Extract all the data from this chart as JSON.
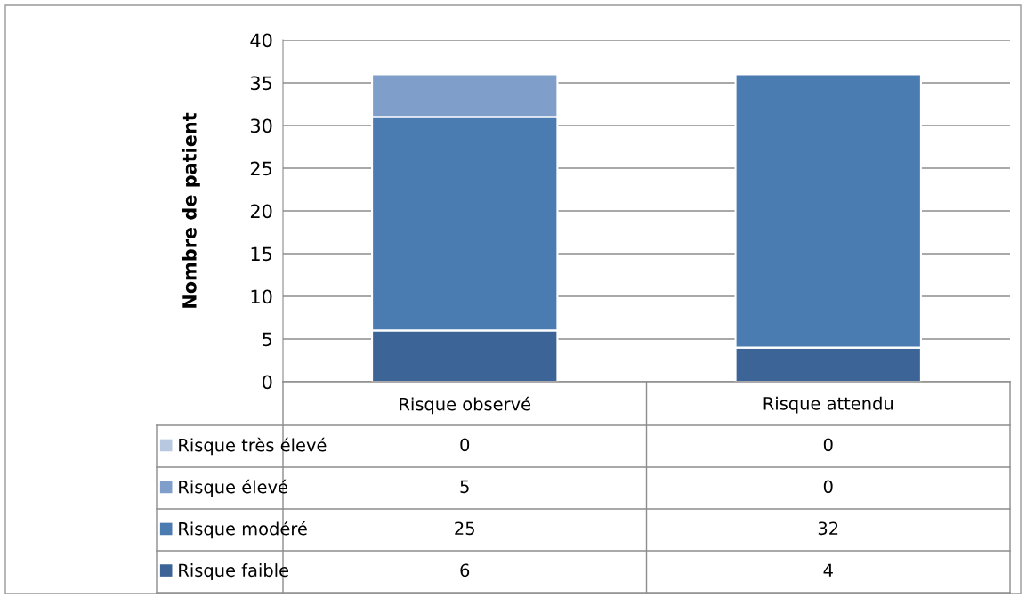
{
  "chart_data": {
    "type": "bar",
    "stacked": true,
    "ylabel": "Nombre de patient",
    "categories": [
      "Risque observé",
      "Risque attendu"
    ],
    "series": [
      {
        "name": "Risque faible",
        "color": "#3c6497",
        "values": [
          6,
          4
        ]
      },
      {
        "name": "Risque modéré",
        "color": "#4a7bb1",
        "values": [
          25,
          32
        ]
      },
      {
        "name": "Risque élevé",
        "color": "#7f9ec9",
        "values": [
          5,
          0
        ]
      },
      {
        "name": "Risque très élevé",
        "color": "#b9c8e1",
        "values": [
          0,
          0
        ]
      }
    ],
    "ylim": [
      0,
      40
    ],
    "yticks": [
      0,
      5,
      10,
      15,
      20,
      25,
      30,
      35,
      40
    ],
    "grid": "y",
    "legend": "bottom",
    "data_labels": true
  }
}
